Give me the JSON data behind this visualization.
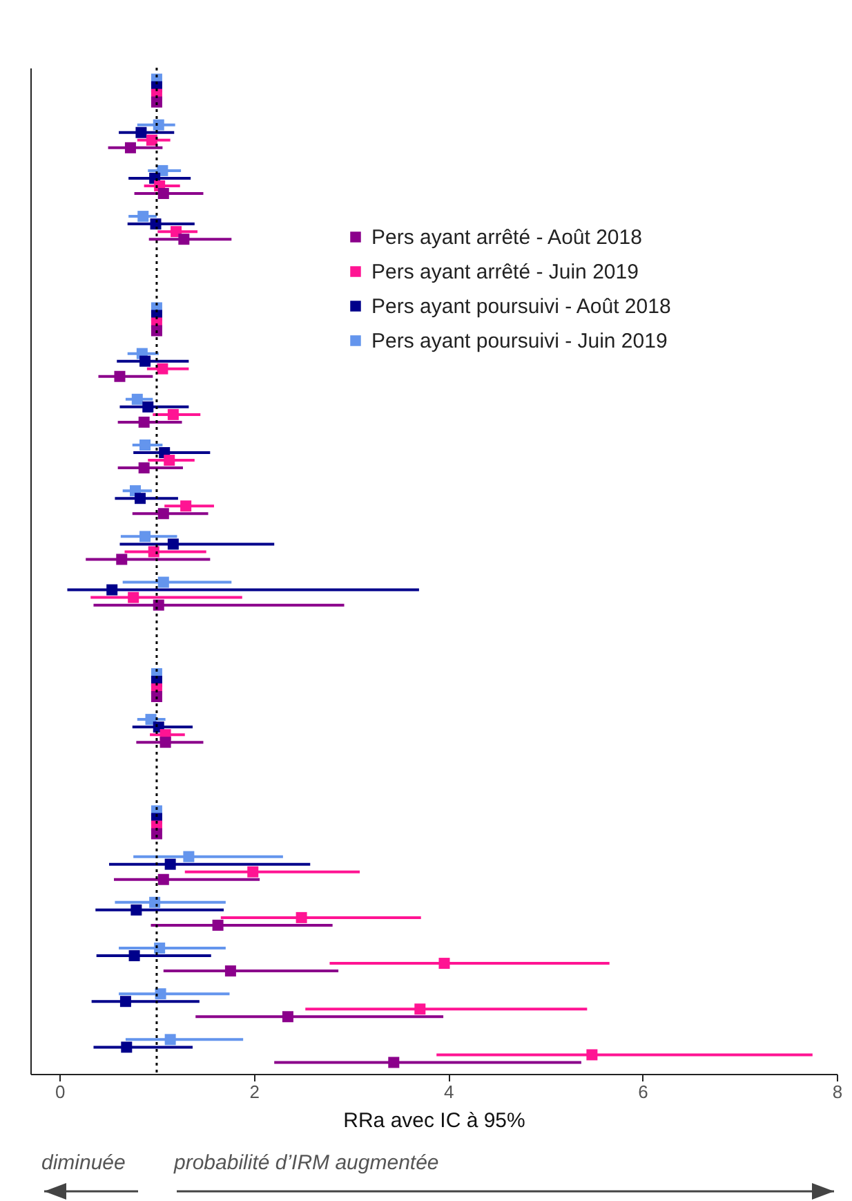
{
  "chart_data": {
    "type": "scatter",
    "orientation": "horizontal",
    "xlabel": "RRa avec IC à 95%",
    "categories": [
      null,
      null,
      null,
      null,
      null,
      null,
      null,
      null,
      null,
      null,
      null,
      null,
      null,
      null,
      null,
      null,
      null,
      null,
      null,
      null,
      null,
      null
    ],
    "xlim": [
      -0.3,
      8
    ],
    "xticks": [
      0,
      2,
      4,
      6,
      8
    ],
    "tick_labels": "x",
    "grid": false,
    "legend": "top right",
    "marker": "square",
    "ref_lines": [
      {
        "axis": "x",
        "value": 1,
        "line_style": "dotted"
      }
    ],
    "annotations": [
      "diminuée",
      "probabilité d’IRM augmentée"
    ],
    "series": [
      {
        "name": "Pers ayant poursuivi - Juin 2019",
        "color": "#6495ed",
        "values": [
          1,
          1.02,
          1.06,
          0.86,
          null,
          1,
          0.85,
          0.8,
          0.88,
          0.78,
          0.88,
          1.07,
          null,
          1,
          0.94,
          null,
          1,
          1.33,
          0.98,
          1.03,
          1.04,
          1.14
        ],
        "errors": [
          null,
          [
            0.8,
            1.19
          ],
          [
            0.91,
            1.25
          ],
          [
            0.71,
            1.0
          ],
          null,
          null,
          [
            0.7,
            1.02
          ],
          [
            0.68,
            0.96
          ],
          [
            0.75,
            1.06
          ],
          [
            0.65,
            0.95
          ],
          [
            0.63,
            1.21
          ],
          [
            0.65,
            1.77
          ],
          null,
          null,
          [
            0.8,
            1.09
          ],
          null,
          null,
          [
            0.76,
            2.3
          ],
          [
            0.57,
            1.71
          ],
          [
            0.61,
            1.71
          ],
          [
            0.61,
            1.75
          ],
          [
            0.68,
            1.89
          ]
        ]
      },
      {
        "name": "Pers ayant poursuivi - Août 2018",
        "color": "#00008b",
        "values": [
          1,
          0.84,
          0.98,
          0.99,
          null,
          1,
          0.88,
          0.91,
          1.08,
          0.83,
          1.17,
          0.54,
          null,
          1,
          1.02,
          null,
          1,
          1.14,
          0.79,
          0.77,
          0.68,
          0.69
        ],
        "errors": [
          null,
          [
            0.61,
            1.18
          ],
          [
            0.71,
            1.35
          ],
          [
            0.7,
            1.39
          ],
          null,
          null,
          [
            0.59,
            1.33
          ],
          [
            0.62,
            1.33
          ],
          [
            0.76,
            1.55
          ],
          [
            0.57,
            1.22
          ],
          [
            0.62,
            2.21
          ],
          [
            0.08,
            3.7
          ],
          null,
          null,
          [
            0.75,
            1.37
          ],
          null,
          null,
          [
            0.51,
            2.58
          ],
          [
            0.37,
            1.69
          ],
          [
            0.38,
            1.56
          ],
          [
            0.33,
            1.44
          ],
          [
            0.35,
            1.37
          ]
        ]
      },
      {
        "name": "Pers ayant arrêté - Juin 2019",
        "color": "#ff1493",
        "values": [
          1,
          0.95,
          1.03,
          1.2,
          null,
          1,
          1.06,
          1.17,
          1.13,
          1.3,
          0.97,
          0.76,
          null,
          1,
          1.09,
          null,
          1,
          1.99,
          2.49,
          3.96,
          3.71,
          5.48
        ],
        "errors": [
          null,
          [
            0.8,
            1.14
          ],
          [
            0.87,
            1.24
          ],
          [
            1.01,
            1.42
          ],
          null,
          null,
          [
            0.9,
            1.33
          ],
          [
            0.96,
            1.45
          ],
          [
            0.91,
            1.39
          ],
          [
            1.08,
            1.59
          ],
          [
            0.67,
            1.51
          ],
          [
            0.32,
            1.88
          ],
          null,
          null,
          [
            0.93,
            1.29
          ],
          null,
          null,
          [
            1.29,
            3.09
          ],
          [
            1.66,
            3.72
          ],
          [
            2.78,
            5.66
          ],
          [
            2.53,
            5.43
          ],
          [
            3.88,
            7.75
          ]
        ]
      },
      {
        "name": "Pers ayant arrêté - Août 2018",
        "color": "#8b008b",
        "values": [
          1,
          0.73,
          1.07,
          1.28,
          null,
          1,
          0.62,
          0.87,
          0.87,
          1.07,
          0.64,
          1.02,
          null,
          1,
          1.09,
          null,
          1,
          1.07,
          1.63,
          1.76,
          2.35,
          3.44
        ],
        "errors": [
          null,
          [
            0.5,
            1.06
          ],
          [
            0.77,
            1.48
          ],
          [
            0.92,
            1.77
          ],
          null,
          null,
          [
            0.4,
            0.96
          ],
          [
            0.6,
            1.26
          ],
          [
            0.6,
            1.27
          ],
          [
            0.75,
            1.53
          ],
          [
            0.27,
            1.55
          ],
          [
            0.35,
            2.93
          ],
          null,
          null,
          [
            0.79,
            1.48
          ],
          null,
          null,
          [
            0.56,
            2.06
          ],
          [
            0.94,
            2.81
          ],
          [
            1.07,
            2.87
          ],
          [
            1.4,
            3.95
          ],
          [
            2.21,
            5.37
          ]
        ]
      }
    ]
  }
}
